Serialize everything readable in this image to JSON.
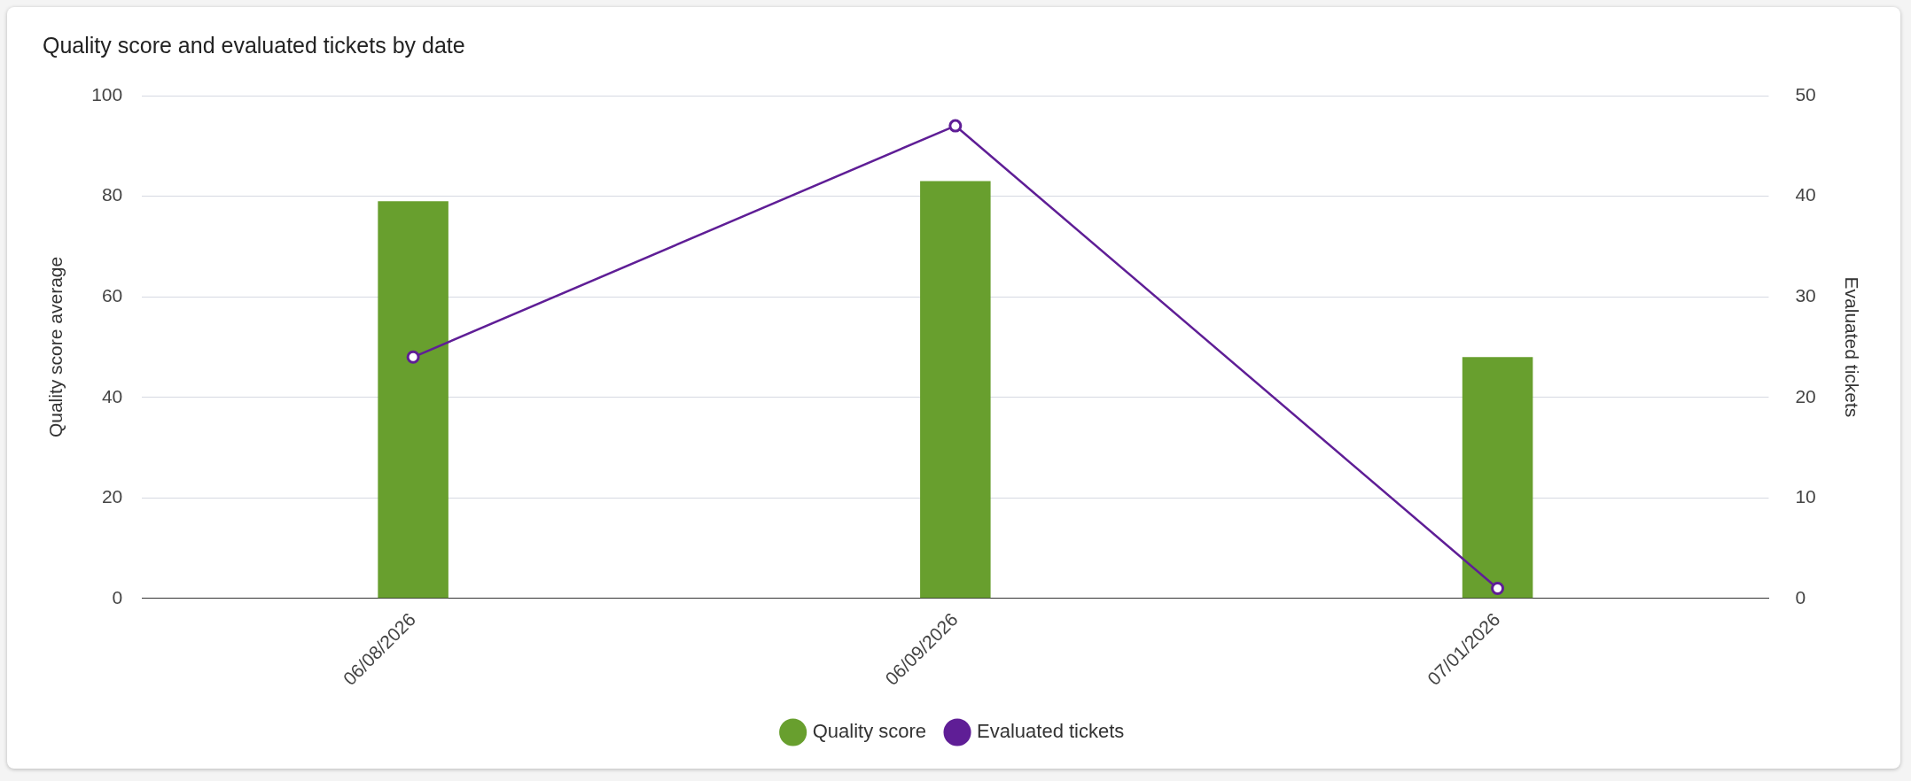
{
  "chart_data": {
    "type": "bar",
    "title": "Quality score and evaluated tickets by date",
    "ylabel": "Quality score average",
    "y2label": "Evaluated tickets",
    "categories": [
      "06/08/2026",
      "06/09/2026",
      "07/01/2026"
    ],
    "series": [
      {
        "name": "Quality score",
        "color": "#689f2e",
        "values": [
          79,
          83,
          48
        ]
      },
      {
        "name": "Evaluated tickets",
        "type": "line",
        "color": "#5f1e96",
        "values": [
          24,
          47,
          1
        ],
        "axis": "y2"
      }
    ],
    "ylim": [
      0,
      100
    ],
    "yticks": [
      0,
      20,
      40,
      60,
      80,
      100
    ],
    "y2lim": [
      0,
      50
    ],
    "y2ticks": [
      0,
      10,
      20,
      30,
      40,
      50
    ],
    "grid": "y",
    "legend": "bottom",
    "marker": "circle",
    "line_style": "solid"
  }
}
